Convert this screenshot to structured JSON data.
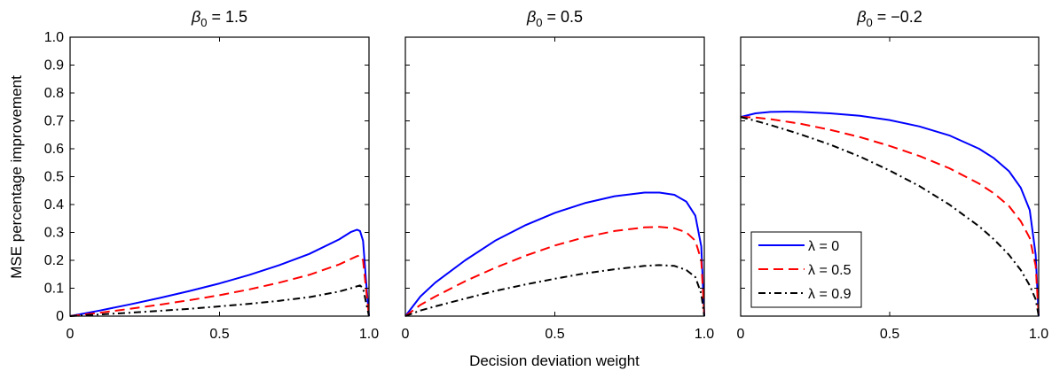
{
  "figure": {
    "ylabel": "MSE percentage improvement",
    "xlabel": "Decision deviation weight"
  },
  "legend": {
    "placement": "bottom-left of third panel",
    "entries": [
      {
        "label": "λ = 0",
        "color": "#0000ff",
        "style": "solid"
      },
      {
        "label": "λ = 0.5",
        "color": "#ff0000",
        "style": "dashed"
      },
      {
        "label": "λ = 0.9",
        "color": "#000000",
        "style": "dash-dot"
      }
    ]
  },
  "chart_data": [
    {
      "type": "line",
      "title": {
        "prefix": "β",
        "sub": "0",
        "suffix": " = 1.5"
      },
      "xlim": [
        0,
        1
      ],
      "ylim": [
        0,
        1
      ],
      "xticks": [
        "0",
        "0.5",
        "1.0"
      ],
      "yticks": [
        "0",
        "0.1",
        "0.2",
        "0.3",
        "0.4",
        "0.5",
        "0.6",
        "0.7",
        "0.8",
        "0.9",
        "1.0"
      ],
      "grid": false,
      "series": [
        {
          "name": "λ = 0",
          "x": [
            0,
            0.1,
            0.2,
            0.3,
            0.4,
            0.5,
            0.6,
            0.7,
            0.8,
            0.9,
            0.94,
            0.96,
            0.97,
            0.98,
            0.99,
            1.0
          ],
          "y": [
            0,
            0.02,
            0.042,
            0.065,
            0.09,
            0.117,
            0.148,
            0.183,
            0.223,
            0.275,
            0.302,
            0.31,
            0.305,
            0.27,
            0.13,
            0
          ]
        },
        {
          "name": "λ = 0.5",
          "x": [
            0,
            0.1,
            0.2,
            0.3,
            0.4,
            0.5,
            0.6,
            0.7,
            0.8,
            0.9,
            0.94,
            0.96,
            0.97,
            0.98,
            0.99,
            1.0
          ],
          "y": [
            0,
            0.012,
            0.026,
            0.041,
            0.057,
            0.075,
            0.096,
            0.12,
            0.148,
            0.185,
            0.205,
            0.215,
            0.217,
            0.2,
            0.1,
            0
          ]
        },
        {
          "name": "λ = 0.9",
          "x": [
            0,
            0.1,
            0.2,
            0.3,
            0.4,
            0.5,
            0.6,
            0.7,
            0.8,
            0.9,
            0.94,
            0.96,
            0.97,
            0.98,
            0.99,
            1.0
          ],
          "y": [
            0,
            0.006,
            0.012,
            0.019,
            0.026,
            0.035,
            0.044,
            0.055,
            0.068,
            0.088,
            0.1,
            0.107,
            0.11,
            0.1,
            0.05,
            0
          ]
        }
      ]
    },
    {
      "type": "line",
      "title": {
        "prefix": "β",
        "sub": "0",
        "suffix": " = 0.5"
      },
      "xlim": [
        0,
        1
      ],
      "ylim": [
        0,
        1
      ],
      "xticks": [
        "0",
        "0.5",
        "1.0"
      ],
      "yticks": [
        "0",
        "0.1",
        "0.2",
        "0.3",
        "0.4",
        "0.5",
        "0.6",
        "0.7",
        "0.8",
        "0.9",
        "1.0"
      ],
      "grid": false,
      "series": [
        {
          "name": "λ = 0",
          "x": [
            0,
            0.05,
            0.1,
            0.2,
            0.3,
            0.4,
            0.5,
            0.6,
            0.7,
            0.8,
            0.85,
            0.9,
            0.94,
            0.97,
            0.99,
            1.0
          ],
          "y": [
            0,
            0.07,
            0.12,
            0.2,
            0.27,
            0.325,
            0.37,
            0.405,
            0.43,
            0.443,
            0.443,
            0.435,
            0.41,
            0.36,
            0.25,
            0
          ]
        },
        {
          "name": "λ = 0.5",
          "x": [
            0,
            0.05,
            0.1,
            0.2,
            0.3,
            0.4,
            0.5,
            0.6,
            0.7,
            0.8,
            0.85,
            0.9,
            0.94,
            0.97,
            0.99,
            1.0
          ],
          "y": [
            0,
            0.04,
            0.07,
            0.125,
            0.173,
            0.216,
            0.253,
            0.283,
            0.305,
            0.318,
            0.32,
            0.315,
            0.3,
            0.27,
            0.2,
            0
          ]
        },
        {
          "name": "λ = 0.9",
          "x": [
            0,
            0.05,
            0.1,
            0.2,
            0.3,
            0.4,
            0.5,
            0.6,
            0.7,
            0.8,
            0.85,
            0.9,
            0.94,
            0.97,
            0.99,
            1.0
          ],
          "y": [
            0,
            0.02,
            0.035,
            0.063,
            0.09,
            0.113,
            0.134,
            0.153,
            0.168,
            0.18,
            0.183,
            0.18,
            0.165,
            0.14,
            0.08,
            0
          ]
        }
      ]
    },
    {
      "type": "line",
      "title": {
        "prefix": "β",
        "sub": "0",
        "suffix": " = −0.2"
      },
      "xlim": [
        0,
        1
      ],
      "ylim": [
        0,
        1
      ],
      "xticks": [
        "0",
        "0.5",
        "1.0"
      ],
      "yticks": [
        "0",
        "0.1",
        "0.2",
        "0.3",
        "0.4",
        "0.5",
        "0.6",
        "0.7",
        "0.8",
        "0.9",
        "1.0"
      ],
      "grid": false,
      "series": [
        {
          "name": "λ = 0",
          "x": [
            0,
            0.05,
            0.1,
            0.15,
            0.2,
            0.3,
            0.4,
            0.5,
            0.6,
            0.7,
            0.8,
            0.85,
            0.9,
            0.94,
            0.97,
            0.99,
            1.0
          ],
          "y": [
            0.714,
            0.727,
            0.732,
            0.733,
            0.732,
            0.727,
            0.718,
            0.703,
            0.68,
            0.648,
            0.6,
            0.566,
            0.52,
            0.46,
            0.38,
            0.22,
            0
          ]
        },
        {
          "name": "λ = 0.5",
          "x": [
            0,
            0.05,
            0.1,
            0.2,
            0.3,
            0.4,
            0.5,
            0.6,
            0.7,
            0.8,
            0.85,
            0.9,
            0.94,
            0.97,
            0.99,
            1.0
          ],
          "y": [
            0.714,
            0.712,
            0.706,
            0.69,
            0.668,
            0.642,
            0.61,
            0.574,
            0.53,
            0.475,
            0.44,
            0.395,
            0.34,
            0.28,
            0.18,
            0
          ]
        },
        {
          "name": "λ = 0.9",
          "x": [
            0,
            0.05,
            0.1,
            0.2,
            0.3,
            0.4,
            0.5,
            0.6,
            0.7,
            0.8,
            0.85,
            0.9,
            0.94,
            0.97,
            0.99,
            1.0
          ],
          "y": [
            0.714,
            0.7,
            0.685,
            0.652,
            0.615,
            0.572,
            0.522,
            0.466,
            0.4,
            0.322,
            0.275,
            0.22,
            0.165,
            0.11,
            0.06,
            0
          ]
        }
      ]
    }
  ]
}
